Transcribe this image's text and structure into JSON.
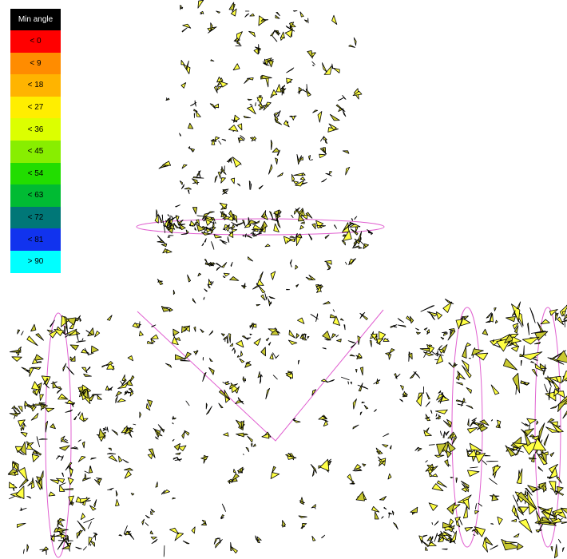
{
  "legend": {
    "title": "Min angle",
    "items": [
      {
        "label": "< 0",
        "color": "#ff0000"
      },
      {
        "label": "< 9",
        "color": "#ff8c00"
      },
      {
        "label": "< 18",
        "color": "#ffb400"
      },
      {
        "label": "< 27",
        "color": "#ffee00"
      },
      {
        "label": "< 36",
        "color": "#dcff00"
      },
      {
        "label": "< 45",
        "color": "#88ee00"
      },
      {
        "label": "< 54",
        "color": "#22dd00"
      },
      {
        "label": "< 63",
        "color": "#00bb33"
      },
      {
        "label": "< 72",
        "color": "#007777"
      },
      {
        "label": "< 81",
        "color": "#1133ee"
      },
      {
        "label": "> 90",
        "color": "#00ffff"
      }
    ]
  },
  "colors": {
    "background": "#ffffff",
    "element_fill": "#ffff44",
    "element_shade": "#c8c830",
    "element_edge": "#000000",
    "guide_curve": "#e060d0"
  }
}
